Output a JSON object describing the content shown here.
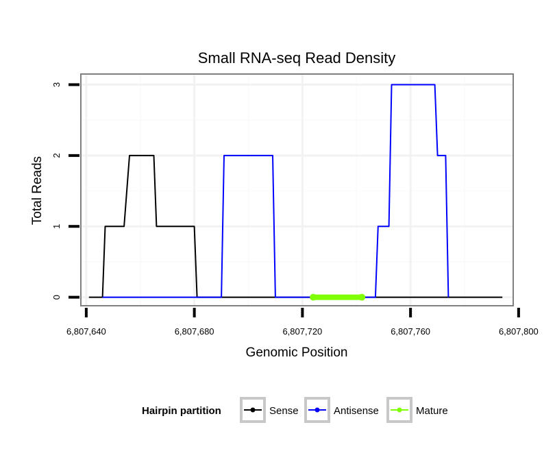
{
  "chart_data": {
    "type": "line",
    "title": "Small RNA-seq Read Density",
    "xlabel": "Genomic Position",
    "ylabel": "Total Reads",
    "xlim": [
      6807638,
      6807798
    ],
    "ylim": [
      -0.12,
      3.15
    ],
    "x_ticks": [
      6807640,
      6807680,
      6807720,
      6807760,
      6807800
    ],
    "x_tick_labels": [
      "6,807,640",
      "6,807,680",
      "6,807,720",
      "6,807,760",
      "6,807,800"
    ],
    "y_ticks": [
      0,
      1,
      2,
      3
    ],
    "y_tick_labels": [
      "0",
      "1",
      "2",
      "3"
    ],
    "grid": true,
    "legend": {
      "title": "Hairpin partition",
      "position": "bottom"
    },
    "series": [
      {
        "name": "Sense",
        "color": "#000000",
        "x": [
          6807641,
          6807646,
          6807647,
          6807654,
          6807656,
          6807665,
          6807666,
          6807680,
          6807681,
          6807794
        ],
        "y": [
          0,
          0,
          1,
          1,
          2,
          2,
          1,
          1,
          0,
          0
        ]
      },
      {
        "name": "Antisense",
        "color": "#0000ff",
        "x": [
          6807646,
          6807690,
          6807691,
          6807709,
          6807710,
          6807747,
          6807748,
          6807752,
          6807753,
          6807769,
          6807770,
          6807773,
          6807774
        ],
        "y": [
          0,
          0,
          2,
          2,
          0,
          0,
          1,
          1,
          3,
          3,
          2,
          2,
          0
        ]
      },
      {
        "name": "Mature",
        "color": "#7fff00",
        "x": [
          6807724,
          6807742
        ],
        "y": [
          0,
          0
        ]
      }
    ]
  }
}
